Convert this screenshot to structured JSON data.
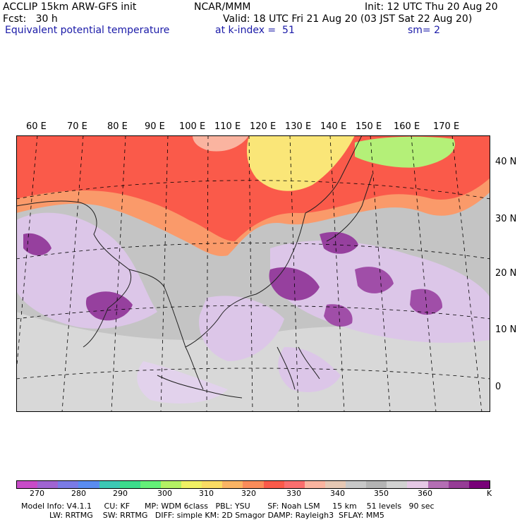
{
  "header": {
    "line1_left": "ACCLIP 15km ARW-GFS init",
    "line1_center": "NCAR/MMM",
    "line1_right": "Init: 12 UTC Thu 20 Aug 20",
    "line2_left": "Fcst:   30 h",
    "line2_right": "Valid: 18 UTC Fri 21 Aug 20 (03 JST Sat 22 Aug 20)",
    "line3_left": "Equivalent potential temperature",
    "line3_center": "at k-index =  51",
    "line3_right": "sm= 2"
  },
  "map": {
    "lon_labels": [
      "60 E",
      "70 E",
      "80 E",
      "90 E",
      "100 E",
      "110 E",
      "120 E",
      "130 E",
      "140 E",
      "150 E",
      "160 E",
      "170 E"
    ],
    "lat_labels": [
      "40 N",
      "30 N",
      "20 N",
      "10 N",
      "0"
    ],
    "colors": {
      "ocean_gray": "#b9b9b9",
      "light_gray": "#d6d6d6",
      "lavender": "#dcc6e8",
      "purple": "#96409e",
      "red": "#fa5a4a",
      "orange": "#fa9a6a",
      "yellow": "#fae678",
      "green": "#b4f078"
    }
  },
  "colorbar": {
    "colors": [
      "#c84bc8",
      "#a064d2",
      "#7a7ae6",
      "#5a8cf0",
      "#3cc8b4",
      "#3cdc8c",
      "#64f078",
      "#b4f064",
      "#f0f064",
      "#fadc64",
      "#fab464",
      "#fa8c5a",
      "#fa5a4a",
      "#fa6e6e",
      "#fab4a0",
      "#e6c8b4",
      "#c8c8c8",
      "#b4b4b4",
      "#d2d2d2",
      "#e6c8e6",
      "#b46eb4",
      "#963c96",
      "#780078"
    ],
    "tick_labels": [
      "270",
      "280",
      "290",
      "300",
      "310",
      "320",
      "330",
      "340",
      "350",
      "360",
      "K"
    ]
  },
  "footer": {
    "line1": "Model Info: V4.1.1     CU: KF      MP: WDM 6class   PBL: YSU       SF: Noah LSM     15 km    51 levels   90 sec",
    "line2": "LW: RRTMG    SW: RRTMG   DIFF: simple KM: 2D Smagor DAMP: Rayleigh3  SFLAY: MM5"
  }
}
